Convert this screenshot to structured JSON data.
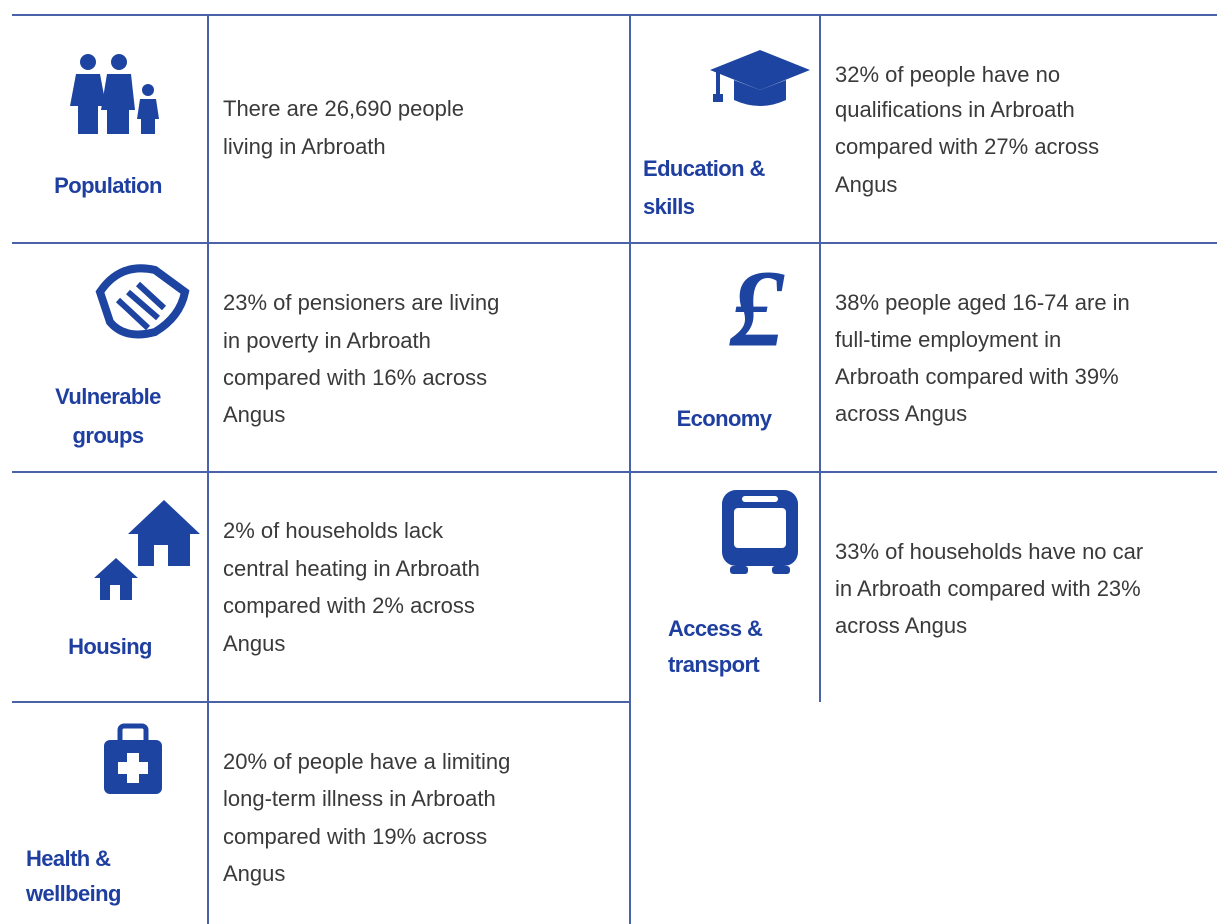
{
  "cells": [
    {
      "label": [
        "Population"
      ],
      "text": [
        "There are 26,690 people",
        "living in Arbroath"
      ]
    },
    {
      "label": [
        "Education &",
        "skills"
      ],
      "text": [
        "32% of people have no",
        "qualifications in Arbroath",
        "compared with 27% across",
        "Angus"
      ]
    },
    {
      "label": [
        "Vulnerable",
        "groups"
      ],
      "text": [
        "23% of pensioners are living",
        "in poverty in Arbroath",
        "compared with 16% across",
        "Angus"
      ]
    },
    {
      "label": [
        "Economy"
      ],
      "text": [
        "38% people aged 16-74 are in",
        "full-time employment in",
        "Arbroath compared with 39%",
        "across Angus"
      ]
    },
    {
      "label": [
        "Housing"
      ],
      "text": [
        "2% of households lack",
        "central heating in Arbroath",
        "compared with 2% across",
        "Angus"
      ]
    },
    {
      "label": [
        "Access &",
        "transport"
      ],
      "text": [
        "33% of households have no car",
        "in Arbroath compared with 23%",
        "across Angus"
      ]
    },
    {
      "label": [
        "Health &",
        "wellbeing"
      ],
      "text": [
        "20% of people have a limiting",
        "long-term illness in Arbroath",
        "compared with 19% across",
        "Angus"
      ]
    }
  ]
}
